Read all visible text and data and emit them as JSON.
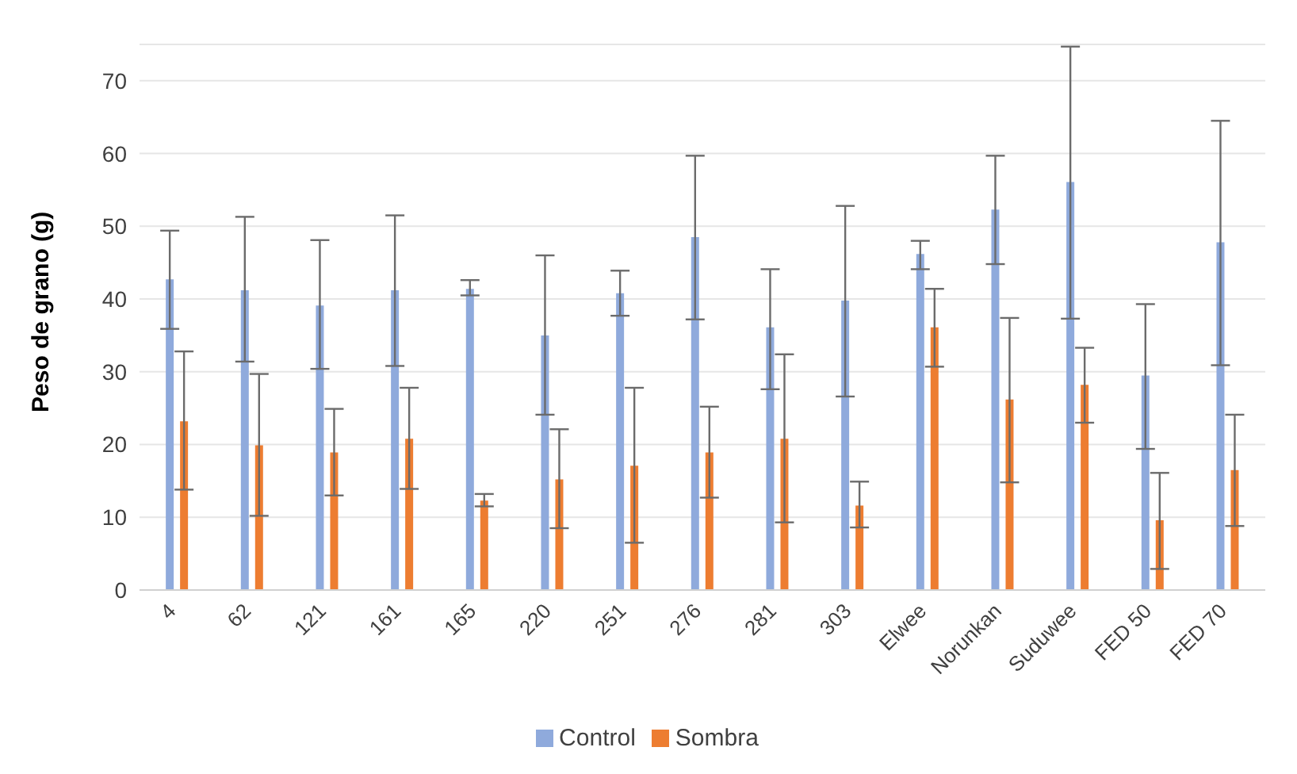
{
  "chart_data": {
    "type": "bar",
    "ylabel": "Peso de grano (g)",
    "categories": [
      "4",
      "62",
      "121",
      "161",
      "165",
      "220",
      "251",
      "276",
      "281",
      "303",
      "Elwee",
      "Norunkan",
      "Suduwee",
      "FED 50",
      "FED 70"
    ],
    "series": [
      {
        "name": "Control",
        "color": "#8faadc",
        "values": [
          42.7,
          41.2,
          39.1,
          41.2,
          41.4,
          35.0,
          40.8,
          48.5,
          36.1,
          39.8,
          46.2,
          52.3,
          56.1,
          29.5,
          47.8
        ],
        "errors": [
          [
            35.9,
            49.4
          ],
          [
            31.4,
            51.3
          ],
          [
            30.4,
            48.1
          ],
          [
            30.8,
            51.5
          ],
          [
            40.5,
            42.6
          ],
          [
            24.1,
            46.0
          ],
          [
            37.7,
            43.9
          ],
          [
            37.2,
            59.7
          ],
          [
            27.6,
            44.1
          ],
          [
            26.6,
            52.8
          ],
          [
            44.1,
            48.0
          ],
          [
            44.8,
            59.7
          ],
          [
            37.3,
            74.7
          ],
          [
            19.4,
            39.3
          ],
          [
            30.9,
            64.5
          ]
        ]
      },
      {
        "name": "Sombra",
        "color": "#ed7d31",
        "values": [
          23.2,
          19.9,
          18.9,
          20.8,
          12.3,
          15.2,
          17.1,
          18.9,
          20.8,
          11.6,
          36.1,
          26.2,
          28.2,
          9.6,
          16.5
        ],
        "errors": [
          [
            13.8,
            32.8
          ],
          [
            10.2,
            29.7
          ],
          [
            13.0,
            24.9
          ],
          [
            13.9,
            27.8
          ],
          [
            11.5,
            13.2
          ],
          [
            8.5,
            22.1
          ],
          [
            6.5,
            27.8
          ],
          [
            12.7,
            25.2
          ],
          [
            9.3,
            32.4
          ],
          [
            8.6,
            14.9
          ],
          [
            30.7,
            41.4
          ],
          [
            14.8,
            37.4
          ],
          [
            23.0,
            33.3
          ],
          [
            2.9,
            16.1
          ],
          [
            8.8,
            24.1
          ]
        ]
      }
    ],
    "ylim": [
      0,
      75
    ],
    "yticks": [
      0,
      10,
      20,
      30,
      40,
      50,
      60,
      70
    ],
    "grid": "y",
    "legend": "bottom"
  }
}
